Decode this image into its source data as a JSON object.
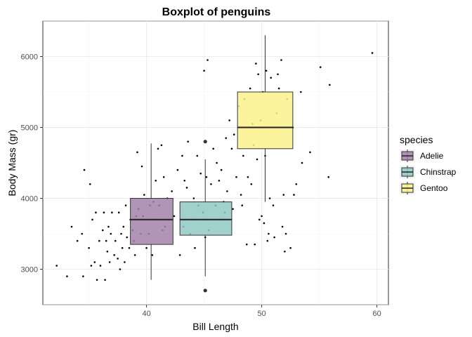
{
  "chart_data": {
    "type": "boxplot",
    "title": "Boxplot of penguins",
    "xlabel": "Bill Length",
    "ylabel": "Body Mass (gr)",
    "xlim": [
      31,
      61
    ],
    "ylim": [
      2500,
      6500
    ],
    "x_ticks": [
      40,
      50,
      60
    ],
    "y_ticks": [
      3000,
      4000,
      5000,
      6000
    ],
    "grid": true,
    "legend": {
      "title": "species",
      "position": "right"
    },
    "series": [
      {
        "name": "Adelie",
        "color": "#A383AA",
        "x_min": 38.6,
        "x_max": 42.3,
        "x_center": 40.4,
        "whisker_low": 2850,
        "q1": 3350,
        "median": 3700,
        "q3": 4000,
        "whisker_high": 4775,
        "outliers": []
      },
      {
        "name": "Chinstrap",
        "color": "#8FC9C4",
        "x_min": 42.9,
        "x_max": 47.4,
        "x_center": 45.1,
        "whisker_low": 2900,
        "q1": 3480,
        "median": 3700,
        "q3": 3950,
        "whisker_high": 4550,
        "outliers": [
          2700,
          4800
        ]
      },
      {
        "name": "Gentoo",
        "color": "#FCF18C",
        "x_min": 47.9,
        "x_max": 52.7,
        "x_center": 50.3,
        "whisker_low": 3950,
        "q1": 4700,
        "median": 5000,
        "q3": 5500,
        "whisker_high": 6300,
        "outliers": []
      }
    ],
    "points": [
      [
        32.2,
        3050
      ],
      [
        33.1,
        2900
      ],
      [
        33.5,
        3600
      ],
      [
        34.0,
        3400
      ],
      [
        34.4,
        3500
      ],
      [
        34.5,
        2900
      ],
      [
        34.6,
        4400
      ],
      [
        35.0,
        3300
      ],
      [
        35.1,
        4200
      ],
      [
        35.2,
        3050
      ],
      [
        35.3,
        3700
      ],
      [
        35.5,
        3100
      ],
      [
        35.6,
        3800
      ],
      [
        35.7,
        2850
      ],
      [
        35.9,
        3400
      ],
      [
        36.0,
        3050
      ],
      [
        36.2,
        3550
      ],
      [
        36.3,
        3800
      ],
      [
        36.4,
        2850
      ],
      [
        36.5,
        3400
      ],
      [
        36.6,
        3250
      ],
      [
        36.7,
        3600
      ],
      [
        36.8,
        3100
      ],
      [
        36.9,
        3500
      ],
      [
        37.0,
        3800
      ],
      [
        37.2,
        3200
      ],
      [
        37.3,
        3400
      ],
      [
        37.5,
        3150
      ],
      [
        37.6,
        3800
      ],
      [
        37.7,
        3000
      ],
      [
        37.8,
        3500
      ],
      [
        37.9,
        3300
      ],
      [
        38.0,
        3600
      ],
      [
        38.1,
        3100
      ],
      [
        38.2,
        3900
      ],
      [
        38.3,
        3450
      ],
      [
        38.5,
        3300
      ],
      [
        38.6,
        3700
      ],
      [
        38.8,
        3550
      ],
      [
        38.9,
        3400
      ],
      [
        39.0,
        3200
      ],
      [
        39.1,
        3750
      ],
      [
        39.2,
        4650
      ],
      [
        39.3,
        3850
      ],
      [
        39.5,
        3500
      ],
      [
        39.6,
        4450
      ],
      [
        39.7,
        3750
      ],
      [
        39.8,
        4050
      ],
      [
        40.0,
        3300
      ],
      [
        40.2,
        3500
      ],
      [
        40.3,
        3900
      ],
      [
        40.5,
        3200
      ],
      [
        40.6,
        3950
      ],
      [
        40.8,
        4250
      ],
      [
        40.9,
        3700
      ],
      [
        41.0,
        4700
      ],
      [
        41.1,
        3900
      ],
      [
        41.3,
        4750
      ],
      [
        41.4,
        3550
      ],
      [
        41.5,
        4300
      ],
      [
        41.6,
        3600
      ],
      [
        41.8,
        4000
      ],
      [
        42.0,
        3700
      ],
      [
        42.2,
        4100
      ],
      [
        42.4,
        3750
      ],
      [
        42.7,
        4400
      ],
      [
        42.9,
        3200
      ],
      [
        43.1,
        4600
      ],
      [
        43.2,
        3600
      ],
      [
        43.3,
        4250
      ],
      [
        43.5,
        4150
      ],
      [
        43.6,
        4800
      ],
      [
        43.8,
        3500
      ],
      [
        44.0,
        3700
      ],
      [
        44.1,
        4000
      ],
      [
        44.2,
        3300
      ],
      [
        44.4,
        4600
      ],
      [
        44.5,
        3900
      ],
      [
        44.7,
        4350
      ],
      [
        44.9,
        3800
      ],
      [
        45.0,
        5800
      ],
      [
        45.1,
        3450
      ],
      [
        45.2,
        4300
      ],
      [
        45.3,
        5950
      ],
      [
        45.4,
        3550
      ],
      [
        45.6,
        4200
      ],
      [
        45.8,
        4700
      ],
      [
        46.0,
        3900
      ],
      [
        46.1,
        4500
      ],
      [
        46.3,
        4250
      ],
      [
        46.4,
        3700
      ],
      [
        46.5,
        4400
      ],
      [
        46.7,
        3950
      ],
      [
        46.8,
        3800
      ],
      [
        46.9,
        4850
      ],
      [
        47.0,
        4100
      ],
      [
        47.2,
        5100
      ],
      [
        47.4,
        4700
      ],
      [
        47.5,
        3850
      ],
      [
        47.6,
        4900
      ],
      [
        47.8,
        4300
      ],
      [
        48.0,
        5300
      ],
      [
        48.2,
        4050
      ],
      [
        48.3,
        3900
      ],
      [
        48.4,
        4600
      ],
      [
        48.5,
        5400
      ],
      [
        48.7,
        3350
      ],
      [
        48.8,
        4300
      ],
      [
        49.0,
        5550
      ],
      [
        49.1,
        4200
      ],
      [
        49.2,
        5050
      ],
      [
        49.3,
        4750
      ],
      [
        49.4,
        3350
      ],
      [
        49.5,
        5900
      ],
      [
        49.6,
        4550
      ],
      [
        49.7,
        5750
      ],
      [
        49.8,
        3700
      ],
      [
        49.9,
        5100
      ],
      [
        50.0,
        3750
      ],
      [
        50.1,
        5500
      ],
      [
        50.2,
        3650
      ],
      [
        50.3,
        4600
      ],
      [
        50.4,
        5800
      ],
      [
        50.5,
        3400
      ],
      [
        50.6,
        3500
      ],
      [
        50.7,
        4000
      ],
      [
        50.8,
        5700
      ],
      [
        51.0,
        3900
      ],
      [
        51.1,
        3450
      ],
      [
        51.3,
        5200
      ],
      [
        51.4,
        5750
      ],
      [
        51.5,
        5550
      ],
      [
        51.7,
        5950
      ],
      [
        51.8,
        3600
      ],
      [
        51.9,
        4050
      ],
      [
        52.0,
        3250
      ],
      [
        52.1,
        3500
      ],
      [
        52.2,
        5400
      ],
      [
        52.5,
        3300
      ],
      [
        52.7,
        5000
      ],
      [
        52.8,
        4050
      ],
      [
        53.0,
        4200
      ],
      [
        53.4,
        5500
      ],
      [
        53.5,
        4500
      ],
      [
        54.2,
        4650
      ],
      [
        55.1,
        5850
      ],
      [
        55.8,
        4300
      ],
      [
        55.9,
        5600
      ],
      [
        59.6,
        6050
      ]
    ]
  }
}
